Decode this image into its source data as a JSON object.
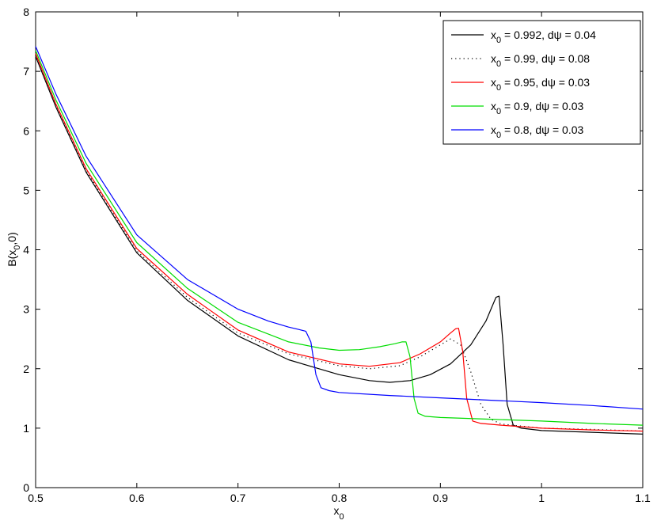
{
  "chart_data": {
    "type": "line",
    "title": "",
    "xlabel": {
      "main": "x",
      "sub": "0"
    },
    "ylabel": {
      "main": "B(x",
      "sub": "0",
      "tail": ",0)"
    },
    "xlim": [
      0.5,
      1.1
    ],
    "ylim": [
      0,
      8
    ],
    "xticks": [
      0.5,
      0.6,
      0.7,
      0.8,
      0.9,
      1,
      1.1
    ],
    "xtick_labels": [
      "0.5",
      "0.6",
      "0.7",
      "0.8",
      "0.9",
      "1",
      "1.1"
    ],
    "yticks": [
      0,
      1,
      2,
      3,
      4,
      5,
      6,
      7,
      8
    ],
    "ytick_labels": [
      "0",
      "1",
      "2",
      "3",
      "4",
      "5",
      "6",
      "7",
      "8"
    ],
    "grid": false,
    "legend_position": "top-right",
    "series": [
      {
        "legend": {
          "pre": "x",
          "sub": "0",
          "post": " =  0.992, dψ = 0.04"
        },
        "color": "#000000",
        "dash": "solid",
        "x": [
          0.5,
          0.52,
          0.55,
          0.6,
          0.65,
          0.7,
          0.75,
          0.8,
          0.83,
          0.85,
          0.87,
          0.89,
          0.91,
          0.93,
          0.945,
          0.95,
          0.955,
          0.958,
          0.962,
          0.966,
          0.972,
          0.98,
          1.0,
          1.05,
          1.1
        ],
        "y": [
          7.25,
          6.4,
          5.3,
          3.95,
          3.15,
          2.55,
          2.15,
          1.9,
          1.8,
          1.77,
          1.8,
          1.9,
          2.08,
          2.4,
          2.8,
          3.0,
          3.2,
          3.22,
          2.4,
          1.4,
          1.05,
          1.0,
          0.96,
          0.93,
          0.9
        ]
      },
      {
        "legend": {
          "pre": "x",
          "sub": "0",
          "post": " =  0.99, dψ = 0.08"
        },
        "color": "#000000",
        "dash": "dotted",
        "x": [
          0.5,
          0.52,
          0.55,
          0.6,
          0.65,
          0.7,
          0.75,
          0.8,
          0.83,
          0.86,
          0.88,
          0.9,
          0.91,
          0.92,
          0.93,
          0.94,
          0.95,
          0.96,
          1.0,
          1.05,
          1.1
        ],
        "y": [
          7.28,
          6.42,
          5.33,
          3.98,
          3.2,
          2.6,
          2.25,
          2.05,
          2.0,
          2.05,
          2.2,
          2.4,
          2.5,
          2.4,
          1.95,
          1.4,
          1.15,
          1.07,
          1.0,
          0.98,
          0.95
        ]
      },
      {
        "legend": {
          "pre": "x",
          "sub": "0",
          "post": " = 0.95, dψ = 0.03"
        },
        "color": "#ff0000",
        "dash": "solid",
        "x": [
          0.5,
          0.52,
          0.55,
          0.6,
          0.65,
          0.7,
          0.75,
          0.8,
          0.83,
          0.86,
          0.88,
          0.9,
          0.91,
          0.915,
          0.918,
          0.922,
          0.926,
          0.932,
          0.94,
          0.96,
          1.0,
          1.05,
          1.1
        ],
        "y": [
          7.3,
          6.45,
          5.36,
          4.02,
          3.25,
          2.65,
          2.28,
          2.08,
          2.04,
          2.1,
          2.25,
          2.45,
          2.6,
          2.67,
          2.68,
          2.3,
          1.5,
          1.12,
          1.08,
          1.05,
          1.0,
          0.97,
          0.95
        ]
      },
      {
        "legend": {
          "pre": "x",
          "sub": "0",
          "post": " = 0.9, dψ = 0.03"
        },
        "color": "#00dd00",
        "dash": "solid",
        "x": [
          0.5,
          0.52,
          0.55,
          0.6,
          0.65,
          0.7,
          0.75,
          0.78,
          0.8,
          0.82,
          0.84,
          0.855,
          0.862,
          0.866,
          0.87,
          0.874,
          0.878,
          0.885,
          0.9,
          0.95,
          1.0,
          1.05,
          1.1
        ],
        "y": [
          7.35,
          6.52,
          5.45,
          4.12,
          3.35,
          2.78,
          2.45,
          2.35,
          2.31,
          2.32,
          2.37,
          2.42,
          2.45,
          2.45,
          2.2,
          1.5,
          1.25,
          1.2,
          1.18,
          1.15,
          1.12,
          1.08,
          1.05
        ]
      },
      {
        "legend": {
          "pre": "x",
          "sub": "0",
          "post": " = 0.8, dψ = 0.03"
        },
        "color": "#0000ff",
        "dash": "solid",
        "x": [
          0.5,
          0.52,
          0.55,
          0.6,
          0.65,
          0.7,
          0.73,
          0.75,
          0.76,
          0.767,
          0.772,
          0.777,
          0.782,
          0.79,
          0.8,
          0.85,
          0.9,
          0.95,
          1.0,
          1.05,
          1.1
        ],
        "y": [
          7.42,
          6.62,
          5.57,
          4.25,
          3.5,
          3.0,
          2.8,
          2.7,
          2.66,
          2.63,
          2.45,
          1.9,
          1.68,
          1.63,
          1.6,
          1.55,
          1.51,
          1.47,
          1.43,
          1.38,
          1.32
        ]
      }
    ]
  }
}
